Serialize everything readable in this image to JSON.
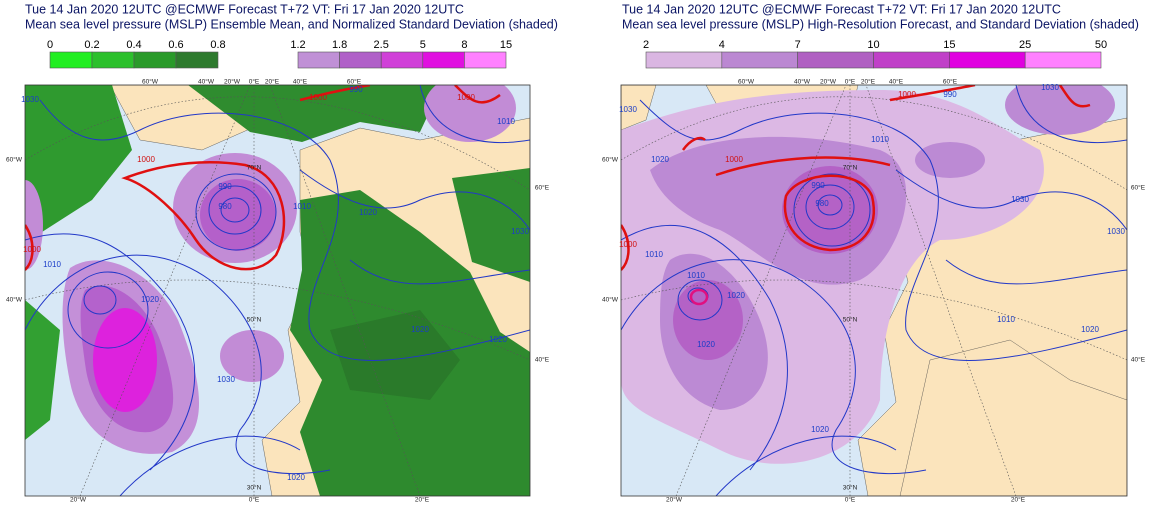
{
  "panels": [
    {
      "title": "Tue 14 Jan 2020 12UTC @ECMWF Forecast T+72 VT: Fri 17 Jan 2020 12UTC",
      "subtitle": "Mean sea level pressure (MSLP) Ensemble Mean, and Normalized Standard Deviation (shaded)",
      "legends": [
        {
          "ticks": [
            0,
            0.2,
            0.4,
            0.6,
            0.8
          ],
          "colors": [
            "#22ee22",
            "#2cc02c",
            "#2a9a2a",
            "#2e7a2e"
          ]
        },
        {
          "ticks": [
            1.2,
            1.8,
            2.5,
            5,
            8,
            15
          ],
          "colors": [
            "#c090d6",
            "#b060c8",
            "#d040d8",
            "#e010e0",
            "#ff80ff"
          ]
        }
      ],
      "contour_labels": [
        "1030",
        "1000",
        "990",
        "1000",
        "1010",
        "1000",
        "990",
        "980",
        "1010",
        "1020",
        "1030",
        "1000",
        "1010",
        "1020",
        "1020",
        "1020",
        "1030",
        "1020"
      ],
      "graticule_labels": [
        "60°W",
        "40°W",
        "20°W",
        "0°E",
        "20°E",
        "40°E",
        "60°E",
        "60°W",
        "40°W",
        "60°E",
        "40°E",
        "20°W",
        "0°E",
        "20°E",
        "70°N",
        "50°N",
        "30°N"
      ]
    },
    {
      "title": "Tue 14 Jan 2020 12UTC @ECMWF Forecast T+72 VT: Fri 17 Jan 2020 12UTC",
      "subtitle": "Mean sea level pressure (MSLP) High-Resolution Forecast, and Standard Deviation (shaded)",
      "legends": [
        {
          "ticks": [
            2,
            4,
            7,
            10,
            15,
            25,
            50
          ],
          "colors": [
            "#dab6e2",
            "#bb88d2",
            "#b060c2",
            "#c040c8",
            "#e000e0",
            "#ff80ff"
          ]
        }
      ],
      "contour_labels": [
        "1030",
        "1020",
        "1000",
        "990",
        "1000",
        "1010",
        "990",
        "980",
        "1010",
        "1020",
        "1030",
        "1000",
        "1010",
        "1020",
        "1010",
        "1020",
        "1030",
        "1020",
        "1030"
      ],
      "graticule_labels": [
        "60°W",
        "40°W",
        "20°W",
        "0°E",
        "20°E",
        "40°E",
        "60°E",
        "60°W",
        "40°W",
        "60°E",
        "40°E",
        "20°W",
        "0°E",
        "20°E",
        "70°N",
        "50°N",
        "30°N"
      ]
    }
  ]
}
